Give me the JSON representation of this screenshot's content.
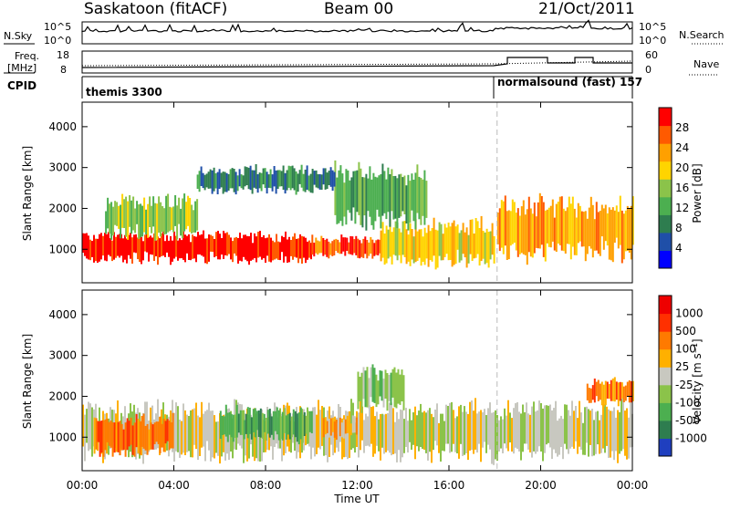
{
  "header": {
    "station": "Saskatoon (fitACF)",
    "beam": "Beam 00",
    "date": "21/Oct/2011"
  },
  "status_panels": {
    "nsky_label": "N.Sky",
    "nsky_ticks": [
      "10^5",
      "10^0"
    ],
    "nsearch_label": "N.Search",
    "nsearch_ticks": [
      "10^5",
      "10^0"
    ],
    "freq_label_1": "Freq.",
    "freq_label_2": "[MHz]",
    "freq_ticks": [
      "18",
      "8"
    ],
    "nave_label": "Nave",
    "nave_ticks": [
      "60",
      "0"
    ],
    "cpid_label": "CPID",
    "cpid_segments": [
      {
        "text": "themis 3300",
        "start_hour": 0
      },
      {
        "text": "normalsound (fast) 157",
        "start_hour": 18.1
      }
    ]
  },
  "chart_data": [
    {
      "type": "heatmap",
      "name": "power",
      "ylabel": "Slant Range [km]",
      "xlabel": "Time UT",
      "xlim_hours": [
        0,
        24
      ],
      "ylim_km": [
        180,
        4600
      ],
      "yticks": [
        1000,
        2000,
        3000,
        4000
      ],
      "xticks": [
        "00:00",
        "04:00",
        "08:00",
        "12:00",
        "16:00",
        "20:00",
        "00:00"
      ],
      "colorbar_label": "Power [dB]",
      "colorbar_ticks": [
        "28",
        "24",
        "20",
        "16",
        "12",
        "8",
        "4"
      ],
      "colors": [
        "#0000ff",
        "#1f4fa8",
        "#2e7d4f",
        "#4caf50",
        "#8bc34a",
        "#ffd400",
        "#ffa000",
        "#ff5a00",
        "#ff0000"
      ],
      "mode_change_hour": 18.1,
      "regions": [
        {
          "t0": 0.0,
          "t1": 10.0,
          "r0": 700,
          "r1": 1400,
          "level": 8
        },
        {
          "t0": 10.0,
          "t1": 13.0,
          "r0": 800,
          "r1": 1300,
          "level": 7
        },
        {
          "t0": 13.0,
          "t1": 18.0,
          "r0": 600,
          "r1": 1700,
          "level": 5
        },
        {
          "t0": 18.1,
          "t1": 24.0,
          "r0": 800,
          "r1": 2200,
          "level": 6
        },
        {
          "t0": 1.0,
          "t1": 5.0,
          "r0": 1300,
          "r1": 2300,
          "level": 4
        },
        {
          "t0": 11.0,
          "t1": 15.0,
          "r0": 1600,
          "r1": 3000,
          "level": 3
        },
        {
          "t0": 5.0,
          "t1": 11.0,
          "r0": 2400,
          "r1": 3000,
          "level": 2
        }
      ]
    },
    {
      "type": "heatmap",
      "name": "velocity",
      "ylabel": "Slant Range [km]",
      "xlabel": "Time UT",
      "xlim_hours": [
        0,
        24
      ],
      "ylim_km": [
        180,
        4600
      ],
      "yticks": [
        1000,
        2000,
        3000,
        4000
      ],
      "xticks": [
        "00:00",
        "04:00",
        "08:00",
        "12:00",
        "16:00",
        "20:00",
        "00:00"
      ],
      "colorbar_label": "Velocity [m s⁻¹]",
      "colorbar_ticks": [
        "1000",
        "500",
        "100",
        "25",
        "-25",
        "-100",
        "-500",
        "-1000"
      ],
      "colors": [
        "#1f3fbf",
        "#2e7d4f",
        "#4caf50",
        "#8bc34a",
        "#c8c8c0",
        "#ffb000",
        "#ff7a00",
        "#ff3000",
        "#ee0000"
      ],
      "mode_change_hour": 18.1,
      "regions": [
        {
          "t0": 0.0,
          "t1": 24.0,
          "r0": 500,
          "r1": 1800,
          "level": 4
        },
        {
          "t0": 0.5,
          "t1": 4.0,
          "r0": 600,
          "r1": 1500,
          "level": 6
        },
        {
          "t0": 6.0,
          "t1": 10.0,
          "r0": 900,
          "r1": 1700,
          "level": 2
        },
        {
          "t0": 10.5,
          "t1": 12.0,
          "r0": 1000,
          "r1": 1500,
          "level": 5
        },
        {
          "t0": 12.0,
          "t1": 14.0,
          "r0": 1700,
          "r1": 2700,
          "level": 3
        },
        {
          "t0": 22.0,
          "t1": 24.0,
          "r0": 1800,
          "r1": 2400,
          "level": 6
        }
      ]
    }
  ]
}
